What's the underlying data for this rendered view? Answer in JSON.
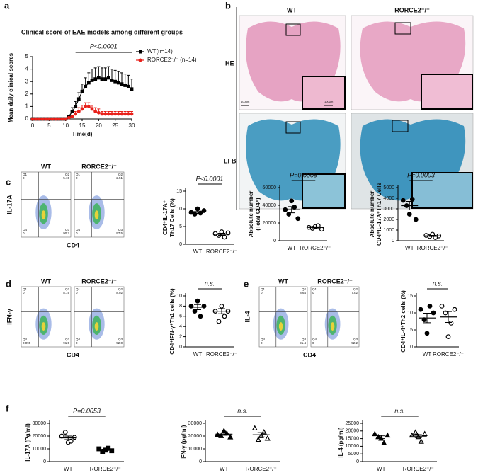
{
  "panel_labels": [
    "a",
    "b",
    "c",
    "d",
    "e",
    "f"
  ],
  "line_chart": {
    "type": "line",
    "title": "Clinical score of EAE models among different groups",
    "x_label": "Time(d)",
    "y_label": "Mean daily clinical scores",
    "annotation": "P<0.0001",
    "xlim": [
      0,
      30
    ],
    "xticks": [
      0,
      5,
      10,
      15,
      20,
      25,
      30
    ],
    "ylim": [
      0,
      5
    ],
    "yticks": [
      0,
      1,
      2,
      3,
      4,
      5
    ],
    "x": [
      0,
      1,
      2,
      3,
      4,
      5,
      6,
      7,
      8,
      9,
      10,
      11,
      12,
      13,
      14,
      15,
      16,
      17,
      18,
      19,
      20,
      21,
      22,
      23,
      24,
      25,
      26,
      27,
      28,
      29,
      30
    ],
    "series": [
      {
        "name": "WT(n=14)",
        "color": "#000000",
        "marker": "square",
        "values": [
          0,
          0,
          0,
          0,
          0,
          0,
          0,
          0,
          0,
          0,
          0,
          0.2,
          0.6,
          1.0,
          1.6,
          2.2,
          2.6,
          2.9,
          3.1,
          3.2,
          3.3,
          3.2,
          3.2,
          3.3,
          3.1,
          3.0,
          2.9,
          2.8,
          2.7,
          2.6,
          2.4
        ],
        "errors": [
          0,
          0,
          0,
          0,
          0,
          0,
          0,
          0,
          0,
          0,
          0,
          0.1,
          0.3,
          0.4,
          0.5,
          0.6,
          0.7,
          0.8,
          0.9,
          0.9,
          0.9,
          0.9,
          0.9,
          0.9,
          0.9,
          0.9,
          0.9,
          0.9,
          0.9,
          0.9,
          0.8
        ]
      },
      {
        "name": "RORCE2⁻/⁻ (n=14)",
        "color": "#e8201a",
        "marker": "circle",
        "values": [
          0,
          0,
          0,
          0,
          0,
          0,
          0,
          0,
          0,
          0,
          0,
          0.1,
          0.2,
          0.4,
          0.6,
          0.8,
          1.0,
          1.0,
          0.8,
          0.6,
          0.5,
          0.4,
          0.4,
          0.4,
          0.4,
          0.4,
          0.4,
          0.4,
          0.4,
          0.4,
          0.4
        ],
        "errors": [
          0,
          0,
          0,
          0,
          0,
          0,
          0,
          0,
          0,
          0,
          0,
          0.05,
          0.1,
          0.2,
          0.3,
          0.3,
          0.3,
          0.3,
          0.3,
          0.3,
          0.3,
          0.2,
          0.2,
          0.2,
          0.2,
          0.2,
          0.2,
          0.2,
          0.2,
          0.2,
          0.2
        ]
      }
    ]
  },
  "histology": {
    "columns": [
      "WT",
      "RORCE2⁻/⁻"
    ],
    "rows": [
      "HE",
      "LFB"
    ],
    "scale_bars": [
      "400μm",
      "100μm"
    ]
  },
  "flow": [
    {
      "y_label": "IL-17A",
      "x_label": "CD4",
      "plots": [
        {
          "title": "WT",
          "quadrants": [
            {
              "name": "Q1",
              "value": "0"
            },
            {
              "name": "Q2",
              "value": "5.15"
            },
            {
              "name": "Q4",
              "value": "0"
            },
            {
              "name": "Q3",
              "value": "90.7"
            }
          ]
        },
        {
          "title": "RORCE2⁻/⁻",
          "quadrants": [
            {
              "name": "Q1",
              "value": "0"
            },
            {
              "name": "Q2",
              "value": "2.51"
            },
            {
              "name": "Q4",
              "value": "0"
            },
            {
              "name": "Q3",
              "value": "97.5"
            }
          ]
        }
      ]
    },
    {
      "y_label": "IFN-γ",
      "x_label": "CD4",
      "plots": [
        {
          "title": "WT",
          "quadrants": [
            {
              "name": "Q1",
              "value": "0"
            },
            {
              "name": "Q2",
              "value": "8.19"
            },
            {
              "name": "Q4",
              "value": "0.095"
            },
            {
              "name": "Q3",
              "value": "91.5"
            }
          ]
        },
        {
          "title": "RORCE2⁻/⁻",
          "quadrants": [
            {
              "name": "Q1",
              "value": "0"
            },
            {
              "name": "Q2",
              "value": "8.02"
            },
            {
              "name": "Q4",
              "value": "0"
            },
            {
              "name": "Q3",
              "value": "92.0"
            }
          ]
        }
      ]
    },
    {
      "y_label": "IL-4",
      "x_label": "CD4",
      "plots": [
        {
          "title": "WT",
          "quadrants": [
            {
              "name": "Q1",
              "value": "0"
            },
            {
              "name": "Q2",
              "value": "8.64"
            },
            {
              "name": "Q4",
              "value": "0"
            },
            {
              "name": "Q3",
              "value": "91.4"
            }
          ]
        },
        {
          "title": "RORCE2⁻/⁻",
          "quadrants": [
            {
              "name": "Q1",
              "value": "0"
            },
            {
              "name": "Q2",
              "value": "7.82"
            },
            {
              "name": "Q4",
              "value": "0"
            },
            {
              "name": "Q3",
              "value": "92.2"
            }
          ]
        }
      ]
    }
  ],
  "dot_charts": [
    {
      "type": "dot",
      "y_label": [
        "CD4⁺IL-17A⁺",
        "Th17 Cells (%)"
      ],
      "annotation": "P<0.0001",
      "ylim": [
        0,
        15
      ],
      "yticks": [
        0,
        5,
        10,
        15
      ],
      "categories": [
        "WT",
        "RORCE2⁻/⁻"
      ],
      "groups": [
        {
          "values": [
            9,
            8.5,
            10,
            8.8,
            9.5
          ],
          "mean": 9.2,
          "sem": 0.5,
          "marker": "circle",
          "filled": true
        },
        {
          "values": [
            3,
            2.5,
            3.5,
            2,
            3.2
          ],
          "mean": 2.8,
          "sem": 0.3,
          "marker": "circle",
          "filled": false
        }
      ]
    },
    {
      "type": "dot",
      "y_label": [
        "Absolute number",
        "(Total CD4⁺)"
      ],
      "annotation": "P=0.0009",
      "ylim": [
        0,
        60000
      ],
      "yticks": [
        0,
        20000,
        40000,
        60000
      ],
      "categories": [
        "WT",
        "RORCE2⁻/⁻"
      ],
      "groups": [
        {
          "values": [
            35000,
            30000,
            45000,
            38000,
            25000
          ],
          "mean": 35000,
          "sem": 3500,
          "marker": "circle",
          "filled": true
        },
        {
          "values": [
            15000,
            14000,
            16000,
            17000,
            13000
          ],
          "mean": 15000,
          "sem": 700,
          "marker": "circle",
          "filled": false
        }
      ]
    },
    {
      "type": "dot",
      "y_label": [
        "Absolute number",
        "CD4⁺IL-17A⁺Th17 Cells"
      ],
      "annotation": "P=0.0003",
      "ylim": [
        0,
        5000
      ],
      "yticks": [
        0,
        1000,
        2000,
        3000,
        4000,
        5000
      ],
      "categories": [
        "WT",
        "RORCE2⁻/⁻"
      ],
      "groups": [
        {
          "values": [
            3800,
            3300,
            2500,
            3900,
            2000
          ],
          "mean": 3300,
          "sem": 400,
          "marker": "circle",
          "filled": true
        },
        {
          "values": [
            500,
            400,
            600,
            300,
            450
          ],
          "mean": 450,
          "sem": 50,
          "marker": "circle",
          "filled": false
        }
      ]
    },
    {
      "type": "dot",
      "y_label": [
        "CD4⁺IFN-γ⁺Th1 cells (%)"
      ],
      "annotation": "n.s.",
      "ylim": [
        0,
        10
      ],
      "yticks": [
        0,
        2,
        4,
        6,
        8,
        10
      ],
      "categories": [
        "WT",
        "RORCE2⁻/⁻"
      ],
      "groups": [
        {
          "values": [
            8,
            7,
            9,
            6,
            8
          ],
          "mean": 7.8,
          "sem": 0.5,
          "marker": "circle",
          "filled": true
        },
        {
          "values": [
            7,
            5,
            8,
            6,
            7
          ],
          "mean": 7.0,
          "sem": 0.5,
          "marker": "circle",
          "filled": false
        }
      ]
    },
    {
      "type": "dot",
      "y_label": [
        "CD4⁺IL-4⁺Th2 cells (%)"
      ],
      "annotation": "n.s.",
      "ylim": [
        0,
        15
      ],
      "yticks": [
        0,
        5,
        10,
        15
      ],
      "categories": [
        "WT",
        "RORCE2⁻/⁻"
      ],
      "groups": [
        {
          "values": [
            11,
            8,
            4,
            12,
            10
          ],
          "mean": 8.5,
          "sem": 1.4,
          "marker": "circle",
          "filled": true
        },
        {
          "values": [
            12,
            10,
            3,
            7,
            11
          ],
          "mean": 8.8,
          "sem": 1.6,
          "marker": "circle",
          "filled": false
        }
      ]
    },
    {
      "type": "dot",
      "y_label": [
        "IL-17A (Pg/ml)"
      ],
      "annotation": "P=0.0053",
      "ylim": [
        0,
        30000
      ],
      "yticks": [
        0,
        10000,
        20000,
        30000
      ],
      "categories": [
        "WT",
        "RORCE2⁻/⁻"
      ],
      "groups": [
        {
          "values": [
            20000,
            23000,
            15000,
            16000,
            19000
          ],
          "mean": 18600,
          "sem": 1400,
          "marker": "circle",
          "filled": false
        },
        {
          "values": [
            10000,
            8000,
            9000,
            10500,
            8500
          ],
          "mean": 9200,
          "sem": 500,
          "marker": "square",
          "filled": true
        }
      ]
    },
    {
      "type": "dot",
      "y_label": [
        "IFN-γ (pg/ml)"
      ],
      "annotation": "n.s.",
      "ylim": [
        0,
        30000
      ],
      "yticks": [
        0,
        10000,
        20000,
        30000
      ],
      "categories": [
        "WT",
        "RORCE2⁻/⁻"
      ],
      "groups": [
        {
          "values": [
            21000,
            20000,
            24000,
            22000,
            19000
          ],
          "mean": 21500,
          "sem": 900,
          "marker": "triangle",
          "filled": true
        },
        {
          "values": [
            26000,
            17000,
            20000,
            23000,
            18000
          ],
          "mean": 21000,
          "sem": 1700,
          "marker": "triangle",
          "filled": false
        }
      ]
    },
    {
      "type": "dot",
      "y_label": [
        "IL-4 (pg/ml)"
      ],
      "annotation": "n.s.",
      "ylim": [
        0,
        25000
      ],
      "yticks": [
        0,
        5000,
        10000,
        15000,
        20000,
        25000
      ],
      "categories": [
        "WT",
        "RORCE2⁻/⁻"
      ],
      "groups": [
        {
          "values": [
            18000,
            16000,
            15000,
            12000,
            17000
          ],
          "mean": 16000,
          "sem": 1000,
          "marker": "triangle",
          "filled": true
        },
        {
          "values": [
            17000,
            19000,
            16000,
            13000,
            18000
          ],
          "mean": 16600,
          "sem": 1000,
          "marker": "triangle",
          "filled": false
        }
      ]
    }
  ]
}
